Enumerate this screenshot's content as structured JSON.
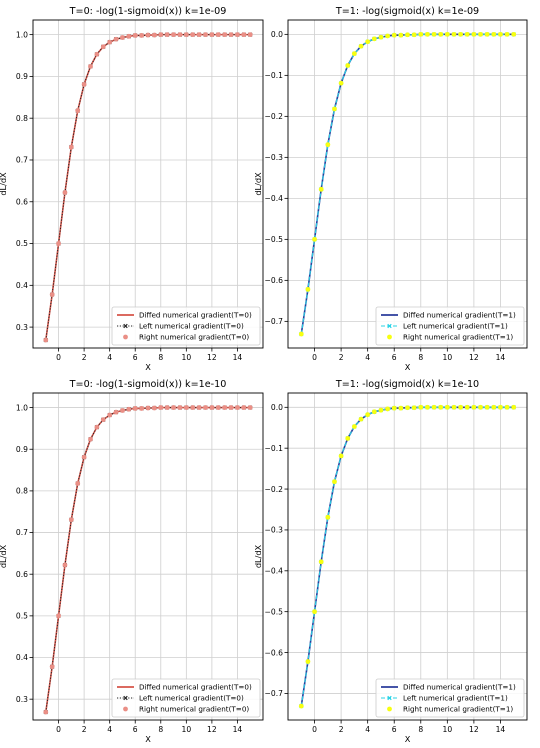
{
  "figure": {
    "panel_count": 4
  },
  "colors": {
    "t0_diffed": "#d6554a",
    "t0_left": "#222222",
    "t0_right": "#ea8f86",
    "t1_diffed": "#2b3d9b",
    "t1_left": "#29d3e6",
    "t1_right": "#f7ff10",
    "grid": "#cfcfcf"
  },
  "chart_data": [
    {
      "type": "line",
      "title": "T=0: -log(1-sigmoid(x)) k=1e-09",
      "xlabel": "X",
      "ylabel": "dL/dX",
      "xlim": [
        -2,
        16
      ],
      "ylim": [
        0.25,
        1.035
      ],
      "xticks": [
        0,
        2,
        4,
        6,
        8,
        10,
        12,
        14
      ],
      "xtick_labels": [
        "0",
        "2",
        "4",
        "6",
        "8",
        "10",
        "12",
        "14"
      ],
      "yticks": [
        0.3,
        0.4,
        0.5,
        0.6,
        0.7,
        0.8,
        0.9,
        1.0
      ],
      "ytick_labels": [
        "0.3",
        "0.4",
        "0.5",
        "0.6",
        "0.7",
        "0.8",
        "0.9",
        "1.0"
      ],
      "grid": true,
      "legend_position": "bottom-right",
      "x": [
        -1.0,
        -0.5,
        0.0,
        0.5,
        1.0,
        1.5,
        2.0,
        2.5,
        3.0,
        3.5,
        4.0,
        4.5,
        5.0,
        5.5,
        6.0,
        6.5,
        7.0,
        7.5,
        8.0,
        8.5,
        9.0,
        9.5,
        10.0,
        10.5,
        11.0,
        11.5,
        12.0,
        12.5,
        13.0,
        13.5,
        14.0,
        14.5,
        15.0
      ],
      "series": [
        {
          "name": "Diffed numerical gradient(T=0)",
          "style": "line",
          "values": [
            0.269,
            0.378,
            0.5,
            0.622,
            0.731,
            0.818,
            0.881,
            0.924,
            0.953,
            0.971,
            0.982,
            0.989,
            0.993,
            0.996,
            0.998,
            0.998,
            0.999,
            0.999,
            1.0,
            1.0,
            1.0,
            1.0,
            1.0,
            1.0,
            1.0,
            1.0,
            1.0,
            1.0,
            1.0,
            1.0,
            1.0,
            1.0,
            1.0
          ]
        },
        {
          "name": "Left numerical gradient(T=0)",
          "style": "dotted-x",
          "values": [
            0.269,
            0.378,
            0.5,
            0.622,
            0.731,
            0.818,
            0.881,
            0.924,
            0.953,
            0.971,
            0.982,
            0.989,
            0.993,
            0.996,
            0.998,
            0.998,
            0.999,
            0.999,
            1.0,
            1.0,
            1.0,
            1.0,
            1.0,
            1.0,
            1.0,
            1.0,
            1.0,
            1.0,
            1.0,
            1.0,
            1.0,
            1.0,
            1.0
          ]
        },
        {
          "name": "Right numerical gradient(T=0)",
          "style": "circle",
          "values": [
            0.269,
            0.378,
            0.5,
            0.622,
            0.731,
            0.818,
            0.881,
            0.924,
            0.953,
            0.971,
            0.982,
            0.989,
            0.993,
            0.996,
            0.998,
            0.998,
            0.999,
            0.999,
            1.0,
            1.0,
            1.0,
            1.0,
            1.0,
            1.0,
            1.0,
            1.0,
            1.0,
            1.0,
            1.0,
            1.0,
            1.0,
            1.0,
            1.0
          ]
        }
      ]
    },
    {
      "type": "line",
      "title": "T=1: -log(sigmoid(x) k=1e-09",
      "xlabel": "X",
      "ylabel": "dL/dX",
      "xlim": [
        -2,
        16
      ],
      "ylim": [
        -0.765,
        0.035
      ],
      "xticks": [
        0,
        2,
        4,
        6,
        8,
        10,
        12,
        14
      ],
      "xtick_labels": [
        "0",
        "2",
        "4",
        "6",
        "8",
        "10",
        "12",
        "14"
      ],
      "yticks": [
        -0.7,
        -0.6,
        -0.5,
        -0.4,
        -0.3,
        -0.2,
        -0.1,
        0.0
      ],
      "ytick_labels": [
        "−0.7",
        "−0.6",
        "−0.5",
        "−0.4",
        "−0.3",
        "−0.2",
        "−0.1",
        "0.0"
      ],
      "grid": true,
      "legend_position": "bottom-right",
      "x": [
        -1.0,
        -0.5,
        0.0,
        0.5,
        1.0,
        1.5,
        2.0,
        2.5,
        3.0,
        3.5,
        4.0,
        4.5,
        5.0,
        5.5,
        6.0,
        6.5,
        7.0,
        7.5,
        8.0,
        8.5,
        9.0,
        9.5,
        10.0,
        10.5,
        11.0,
        11.5,
        12.0,
        12.5,
        13.0,
        13.5,
        14.0,
        14.5,
        15.0
      ],
      "series": [
        {
          "name": "Diffed numerical gradient(T=1)",
          "style": "line",
          "values": [
            -0.731,
            -0.622,
            -0.5,
            -0.378,
            -0.269,
            -0.182,
            -0.119,
            -0.076,
            -0.047,
            -0.029,
            -0.018,
            -0.011,
            -0.007,
            -0.004,
            -0.002,
            -0.002,
            -0.001,
            -0.001,
            0.0,
            0.0,
            0.0,
            0.0,
            0.0,
            0.0,
            0.0,
            0.0,
            0.0,
            0.0,
            0.0,
            0.0,
            0.0,
            0.0,
            0.0
          ]
        },
        {
          "name": "Left numerical gradient(T=1)",
          "style": "dashed-x",
          "values": [
            -0.731,
            -0.622,
            -0.5,
            -0.378,
            -0.269,
            -0.182,
            -0.119,
            -0.076,
            -0.047,
            -0.029,
            -0.018,
            -0.011,
            -0.007,
            -0.004,
            -0.002,
            -0.002,
            -0.001,
            -0.001,
            0.0,
            0.0,
            0.0,
            0.0,
            0.0,
            0.0,
            0.0,
            0.0,
            0.0,
            0.0,
            0.0,
            0.0,
            0.0,
            0.0,
            0.0
          ]
        },
        {
          "name": "Right numerical gradient(T=1)",
          "style": "circle",
          "values": [
            -0.731,
            -0.622,
            -0.5,
            -0.378,
            -0.269,
            -0.182,
            -0.119,
            -0.076,
            -0.047,
            -0.029,
            -0.018,
            -0.011,
            -0.007,
            -0.004,
            -0.002,
            -0.002,
            -0.001,
            -0.001,
            0.0,
            0.0,
            0.0,
            0.0,
            0.0,
            0.0,
            0.0,
            0.0,
            0.0,
            0.0,
            0.0,
            0.0,
            0.0,
            0.0,
            0.0
          ]
        }
      ]
    },
    {
      "type": "line",
      "title": "T=0: -log(1-sigmoid(x)) k=1e-10",
      "xlabel": "X",
      "ylabel": "dL/dX",
      "xlim": [
        -2,
        16
      ],
      "ylim": [
        0.25,
        1.035
      ],
      "xticks": [
        0,
        2,
        4,
        6,
        8,
        10,
        12,
        14
      ],
      "xtick_labels": [
        "0",
        "2",
        "4",
        "6",
        "8",
        "10",
        "12",
        "14"
      ],
      "yticks": [
        0.3,
        0.4,
        0.5,
        0.6,
        0.7,
        0.8,
        0.9,
        1.0
      ],
      "ytick_labels": [
        "0.3",
        "0.4",
        "0.5",
        "0.6",
        "0.7",
        "0.8",
        "0.9",
        "1.0"
      ],
      "grid": true,
      "legend_position": "bottom-right",
      "x": [
        -1.0,
        -0.5,
        0.0,
        0.5,
        1.0,
        1.5,
        2.0,
        2.5,
        3.0,
        3.5,
        4.0,
        4.5,
        5.0,
        5.5,
        6.0,
        6.5,
        7.0,
        7.5,
        8.0,
        8.5,
        9.0,
        9.5,
        10.0,
        10.5,
        11.0,
        11.5,
        12.0,
        12.5,
        13.0,
        13.5,
        14.0,
        14.5,
        15.0
      ],
      "series": [
        {
          "name": "Diffed numerical gradient(T=0)",
          "style": "line",
          "values": [
            0.269,
            0.378,
            0.5,
            0.622,
            0.731,
            0.818,
            0.881,
            0.924,
            0.953,
            0.971,
            0.982,
            0.989,
            0.993,
            0.996,
            0.998,
            0.998,
            0.999,
            0.999,
            1.0,
            1.0,
            1.0,
            1.0,
            1.0,
            1.0,
            1.0,
            1.0,
            1.0,
            1.0,
            1.0,
            1.0,
            1.0,
            1.0,
            1.0
          ]
        },
        {
          "name": "Left numerical gradient(T=0)",
          "style": "dotted-x",
          "values": [
            0.269,
            0.378,
            0.5,
            0.622,
            0.731,
            0.818,
            0.881,
            0.924,
            0.953,
            0.971,
            0.982,
            0.989,
            0.993,
            0.996,
            0.998,
            0.998,
            0.999,
            0.999,
            1.0,
            1.0,
            1.0,
            1.0,
            1.0,
            1.0,
            1.0,
            1.0,
            1.0,
            1.0,
            1.0,
            1.0,
            1.0,
            1.0,
            1.0
          ]
        },
        {
          "name": "Right numerical gradient(T=0)",
          "style": "circle",
          "values": [
            0.269,
            0.378,
            0.5,
            0.622,
            0.731,
            0.818,
            0.881,
            0.924,
            0.953,
            0.971,
            0.982,
            0.989,
            0.993,
            0.996,
            0.998,
            0.998,
            0.999,
            0.999,
            1.0,
            1.0,
            1.0,
            1.0,
            1.0,
            1.0,
            1.0,
            1.0,
            1.0,
            1.0,
            1.0,
            1.0,
            1.0,
            1.0,
            1.0
          ]
        }
      ]
    },
    {
      "type": "line",
      "title": "T=1: -log(sigmoid(x) k=1e-10",
      "xlabel": "X",
      "ylabel": "dL/dX",
      "xlim": [
        -2,
        16
      ],
      "ylim": [
        -0.765,
        0.035
      ],
      "xticks": [
        0,
        2,
        4,
        6,
        8,
        10,
        12,
        14
      ],
      "xtick_labels": [
        "0",
        "2",
        "4",
        "6",
        "8",
        "10",
        "12",
        "14"
      ],
      "yticks": [
        -0.7,
        -0.6,
        -0.5,
        -0.4,
        -0.3,
        -0.2,
        -0.1,
        0.0
      ],
      "ytick_labels": [
        "−0.7",
        "−0.6",
        "−0.5",
        "−0.4",
        "−0.3",
        "−0.2",
        "−0.1",
        "0.0"
      ],
      "grid": true,
      "legend_position": "bottom-right",
      "x": [
        -1.0,
        -0.5,
        0.0,
        0.5,
        1.0,
        1.5,
        2.0,
        2.5,
        3.0,
        3.5,
        4.0,
        4.5,
        5.0,
        5.5,
        6.0,
        6.5,
        7.0,
        7.5,
        8.0,
        8.5,
        9.0,
        9.5,
        10.0,
        10.5,
        11.0,
        11.5,
        12.0,
        12.5,
        13.0,
        13.5,
        14.0,
        14.5,
        15.0
      ],
      "series": [
        {
          "name": "Diffed numerical gradient(T=1)",
          "style": "line",
          "values": [
            -0.731,
            -0.622,
            -0.5,
            -0.378,
            -0.269,
            -0.182,
            -0.119,
            -0.076,
            -0.047,
            -0.029,
            -0.018,
            -0.011,
            -0.007,
            -0.004,
            -0.002,
            -0.002,
            -0.001,
            -0.001,
            0.0,
            0.0,
            0.0,
            0.0,
            0.0,
            0.0,
            0.0,
            0.0,
            0.0,
            0.0,
            0.0,
            0.0,
            0.0,
            0.0,
            0.0
          ]
        },
        {
          "name": "Left numerical gradient(T=1)",
          "style": "dashed-x",
          "values": [
            -0.731,
            -0.622,
            -0.5,
            -0.378,
            -0.269,
            -0.182,
            -0.119,
            -0.076,
            -0.047,
            -0.029,
            -0.018,
            -0.011,
            -0.007,
            -0.004,
            -0.002,
            -0.002,
            -0.001,
            -0.001,
            0.0,
            0.0,
            0.0,
            0.0,
            0.0,
            0.0,
            0.0,
            0.0,
            0.0,
            0.0,
            0.0,
            0.0,
            0.0,
            0.0,
            0.0
          ]
        },
        {
          "name": "Right numerical gradient(T=1)",
          "style": "circle",
          "values": [
            -0.731,
            -0.622,
            -0.5,
            -0.378,
            -0.269,
            -0.182,
            -0.119,
            -0.076,
            -0.047,
            -0.029,
            -0.018,
            -0.011,
            -0.007,
            -0.004,
            -0.002,
            -0.002,
            -0.001,
            -0.001,
            0.0,
            0.0,
            0.0,
            0.0,
            0.0,
            0.0,
            0.0,
            0.0,
            0.0,
            0.0,
            0.0,
            0.0,
            0.0,
            0.0,
            0.0
          ]
        }
      ]
    }
  ]
}
